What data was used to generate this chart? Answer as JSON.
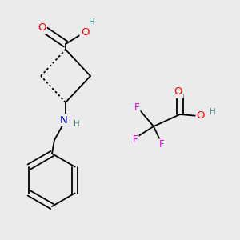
{
  "bg_color": "#ebebeb",
  "atom_colors": {
    "C": "#000000",
    "O": "#ff0000",
    "N": "#0000cd",
    "F": "#ee00ee",
    "H": "#4a9090"
  },
  "bond_color": "#000000",
  "bond_width": 1.3,
  "font_size_atom": 8.5,
  "font_size_H": 7.5,
  "figsize": [
    3.0,
    3.0
  ],
  "dpi": 100
}
